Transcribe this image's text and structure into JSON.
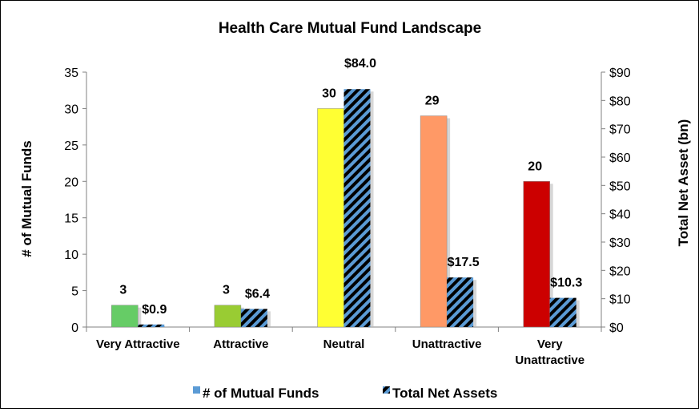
{
  "chart_data": {
    "type": "bar",
    "title": "Health Care Mutual Fund Landscape",
    "categories": [
      "Very Attractive",
      "Attractive",
      "Neutral",
      "Unattractive",
      "Very Unattractive"
    ],
    "category_lines": [
      [
        "Very Attractive"
      ],
      [
        "Attractive"
      ],
      [
        "Neutral"
      ],
      [
        "Unattractive"
      ],
      [
        "Very",
        "Unattractive"
      ]
    ],
    "series": [
      {
        "name": "# of Mutual Funds",
        "axis": "left",
        "values": [
          3,
          3,
          30,
          29,
          20
        ],
        "labels": [
          "3",
          "3",
          "30",
          "29",
          "20"
        ],
        "colors": [
          "#66cc66",
          "#99cc33",
          "#ffff33",
          "#ff9966",
          "#cc0000"
        ],
        "legend_color": "#5b9bd5"
      },
      {
        "name": "Total Net Assets",
        "axis": "right",
        "values": [
          0.9,
          6.4,
          84.0,
          17.5,
          10.3
        ],
        "labels": [
          "$0.9",
          "$6.4",
          "$84.0",
          "$17.5",
          "$10.3"
        ],
        "fill": "#5b9bd5",
        "hatch_color": "#000000"
      }
    ],
    "ylabel": "# of Mutual Funds",
    "y2label": "Total Net Asset (bn)",
    "ylim": [
      0,
      35
    ],
    "yticks": [
      0,
      5,
      10,
      15,
      20,
      25,
      30,
      35
    ],
    "y2lim": [
      0,
      90
    ],
    "y2ticks": [
      "$0",
      "$10",
      "$20",
      "$30",
      "$40",
      "$50",
      "$60",
      "$70",
      "$80",
      "$90"
    ],
    "y2tick_values": [
      0,
      10,
      20,
      30,
      40,
      50,
      60,
      70,
      80,
      90
    ],
    "grid": false,
    "legend_position": "bottom"
  }
}
